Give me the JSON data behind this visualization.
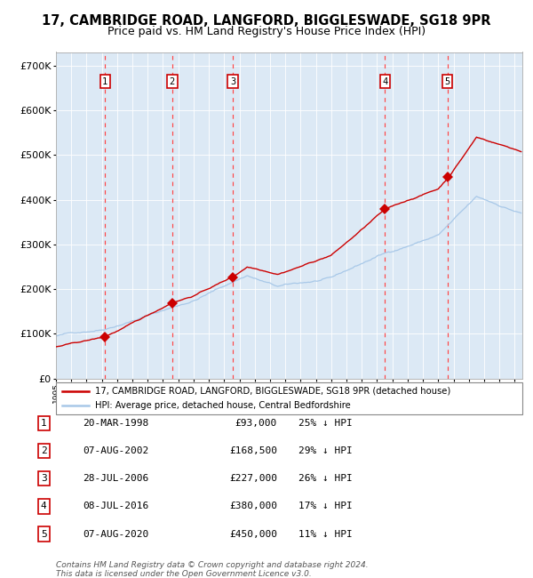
{
  "title": "17, CAMBRIDGE ROAD, LANGFORD, BIGGLESWADE, SG18 9PR",
  "subtitle": "Price paid vs. HM Land Registry's House Price Index (HPI)",
  "title_fontsize": 10.5,
  "subtitle_fontsize": 9,
  "legend_line1": "17, CAMBRIDGE ROAD, LANGFORD, BIGGLESWADE, SG18 9PR (detached house)",
  "legend_line2": "HPI: Average price, detached house, Central Bedfordshire",
  "footer1": "Contains HM Land Registry data © Crown copyright and database right 2024.",
  "footer2": "This data is licensed under the Open Government Licence v3.0.",
  "background_color": "#ffffff",
  "plot_bg_color": "#dce9f5",
  "hpi_line_color": "#a8c8e8",
  "price_line_color": "#cc0000",
  "marker_color": "#cc0000",
  "vline_color": "#ff4444",
  "ytick_values": [
    0,
    100000,
    200000,
    300000,
    400000,
    500000,
    600000,
    700000
  ],
  "ylim": [
    0,
    730000
  ],
  "xlim_start": 1995.0,
  "xlim_end": 2025.5,
  "sale_points": [
    {
      "num": 1,
      "year": 1998.21,
      "price": 93000
    },
    {
      "num": 2,
      "year": 2002.6,
      "price": 168500
    },
    {
      "num": 3,
      "year": 2006.57,
      "price": 227000
    },
    {
      "num": 4,
      "year": 2016.52,
      "price": 380000
    },
    {
      "num": 5,
      "year": 2020.6,
      "price": 450000
    }
  ],
  "table_rows": [
    {
      "num": 1,
      "date": "20-MAR-1998",
      "price": "£93,000",
      "pct": "25% ↓ HPI"
    },
    {
      "num": 2,
      "date": "07-AUG-2002",
      "price": "£168,500",
      "pct": "29% ↓ HPI"
    },
    {
      "num": 3,
      "date": "28-JUL-2006",
      "price": "£227,000",
      "pct": "26% ↓ HPI"
    },
    {
      "num": 4,
      "date": "08-JUL-2016",
      "price": "£380,000",
      "pct": "17% ↓ HPI"
    },
    {
      "num": 5,
      "date": "07-AUG-2020",
      "price": "£450,000",
      "pct": "11% ↓ HPI"
    }
  ]
}
